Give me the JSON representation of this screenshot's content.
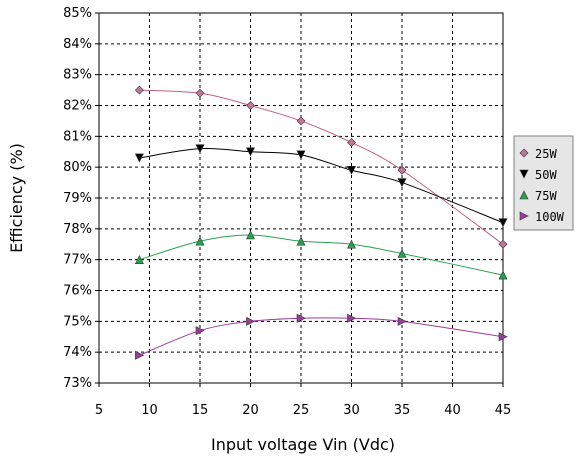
{
  "chart_data": {
    "type": "line",
    "title": "",
    "xlabel": "Input voltage Vin (Vdc)",
    "ylabel": "Efficiency (%)",
    "xlim": [
      5,
      45
    ],
    "ylim": [
      73,
      85
    ],
    "x_ticks": [
      "5",
      "10",
      "15",
      "20",
      "25",
      "30",
      "35",
      "40",
      "45"
    ],
    "y_ticks": [
      "73%",
      "74%",
      "75%",
      "76%",
      "77%",
      "78%",
      "79%",
      "80%",
      "81%",
      "82%",
      "83%",
      "84%",
      "85%"
    ],
    "grid": true,
    "legend_position": "right",
    "x": [
      9,
      15,
      20,
      25,
      30,
      35,
      45
    ],
    "series": [
      {
        "name": "25W",
        "color": "#c06080",
        "marker": "diamond",
        "marker_color": "#c07898",
        "values": [
          82.5,
          82.4,
          82.0,
          81.5,
          80.8,
          79.9,
          77.5
        ]
      },
      {
        "name": "50W",
        "color": "#000000",
        "marker": "triangle-down",
        "marker_color": "#000000",
        "values": [
          80.3,
          80.6,
          80.5,
          80.4,
          79.9,
          79.5,
          78.2
        ]
      },
      {
        "name": "75W",
        "color": "#2aa050",
        "marker": "triangle-up",
        "marker_color": "#2aa050",
        "values": [
          77.0,
          77.6,
          77.8,
          77.6,
          77.5,
          77.2,
          76.5
        ]
      },
      {
        "name": "100W",
        "color": "#9a3d9a",
        "marker": "triangle-right",
        "marker_color": "#9a3d9a",
        "values": [
          73.9,
          74.7,
          75.0,
          75.1,
          75.1,
          75.0,
          74.5
        ]
      }
    ]
  }
}
